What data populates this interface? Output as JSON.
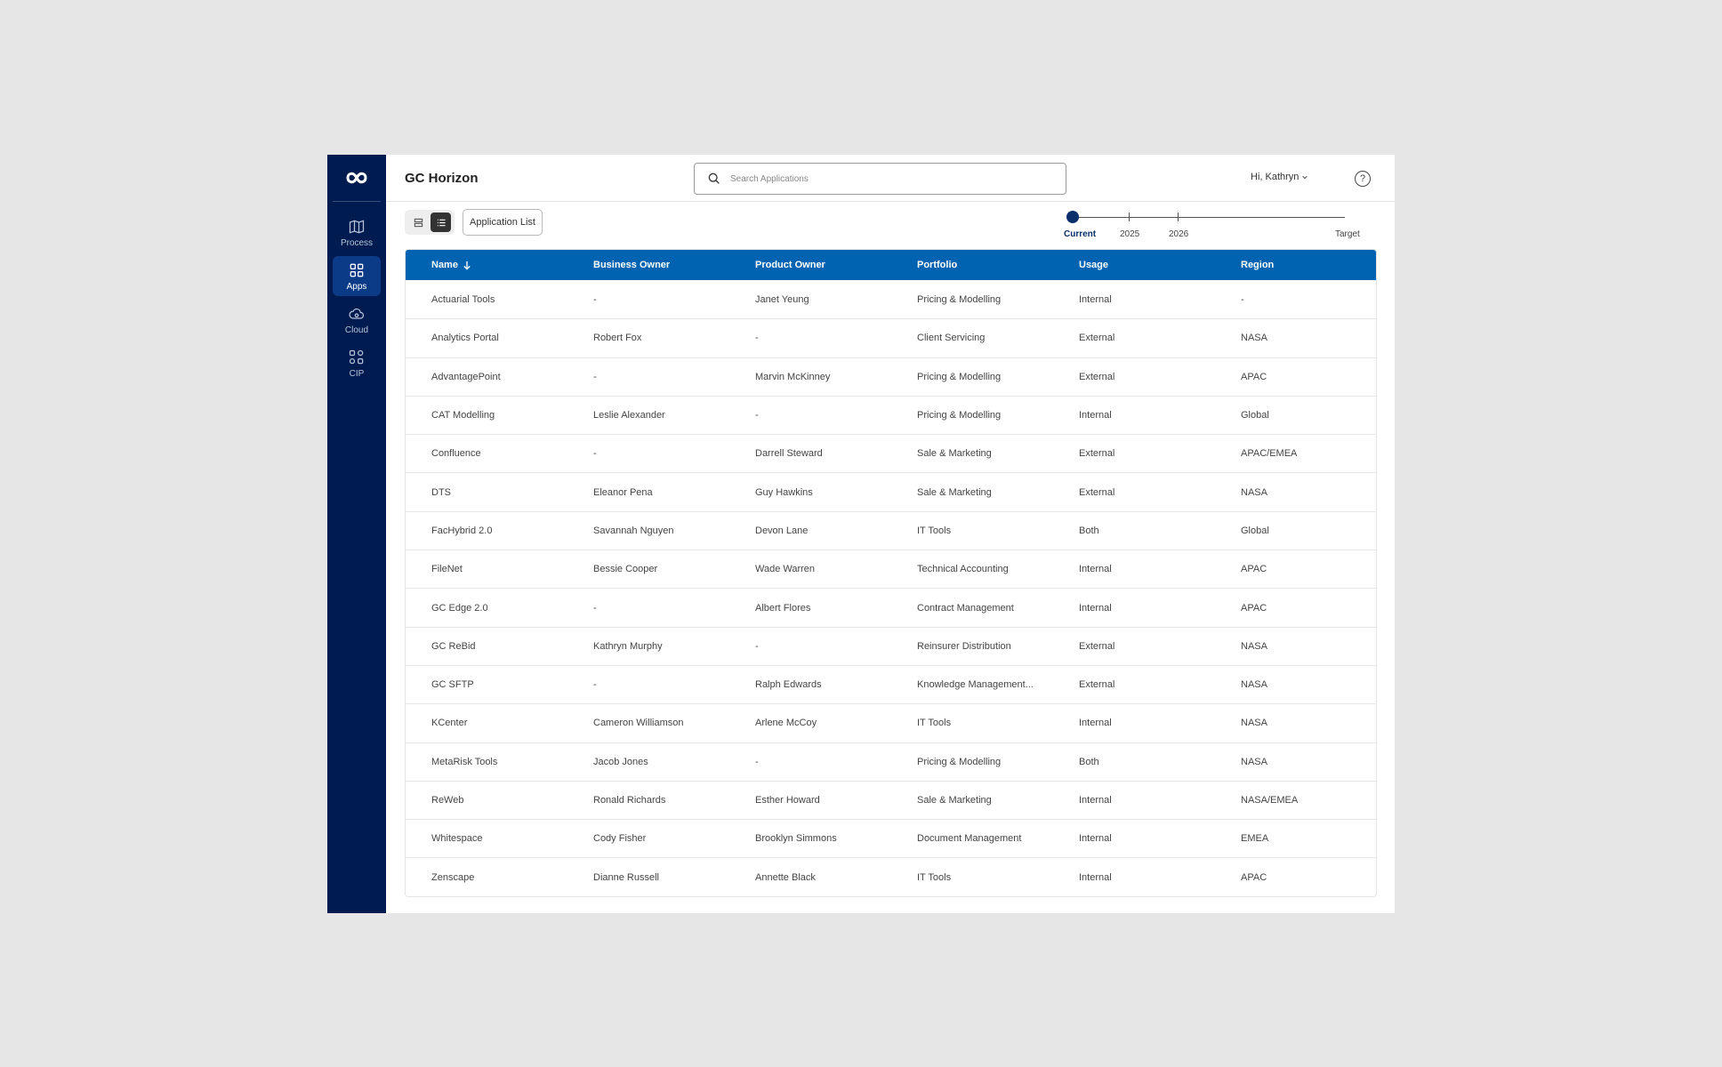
{
  "app": {
    "title": "GC Horizon"
  },
  "sidebar": {
    "items": [
      {
        "label": "Process",
        "icon": "map-icon"
      },
      {
        "label": "Apps",
        "icon": "grid-icon",
        "active": true
      },
      {
        "label": "Cloud",
        "icon": "cloud-icon"
      },
      {
        "label": "CIP",
        "icon": "cip-icon"
      }
    ]
  },
  "search": {
    "placeholder": "Search Applications",
    "value": ""
  },
  "user": {
    "greeting": "Hi, Kathryn"
  },
  "toolbar": {
    "view_label": "Application List"
  },
  "timeline": {
    "labels": [
      "Current",
      "2025",
      "2026",
      "Target"
    ],
    "selected": "Current"
  },
  "table": {
    "columns": [
      "Name",
      "Business Owner",
      "Product Owner",
      "Portfolio",
      "Usage",
      "Region"
    ],
    "sort": {
      "column": "Name",
      "direction": "descending-arrow"
    },
    "rows": [
      [
        "Actuarial Tools",
        "-",
        "Janet Yeung",
        "Pricing & Modelling",
        "Internal",
        "-"
      ],
      [
        "Analytics Portal",
        "Robert Fox",
        "-",
        "Client Servicing",
        "External",
        "NASA"
      ],
      [
        "AdvantagePoint",
        "-",
        "Marvin McKinney",
        "Pricing & Modelling",
        "External",
        "APAC"
      ],
      [
        "CAT Modelling",
        "Leslie Alexander",
        "-",
        "Pricing & Modelling",
        "Internal",
        "Global"
      ],
      [
        "Confluence",
        "-",
        "Darrell Steward",
        "Sale & Marketing",
        "External",
        "APAC/EMEA"
      ],
      [
        "DTS",
        "Eleanor Pena",
        "Guy Hawkins",
        "Sale & Marketing",
        "External",
        "NASA"
      ],
      [
        "FacHybrid 2.0",
        "Savannah Nguyen",
        "Devon Lane",
        "IT Tools",
        "Both",
        "Global"
      ],
      [
        "FileNet",
        "Bessie Cooper",
        "Wade Warren",
        "Technical Accounting",
        "Internal",
        "APAC"
      ],
      [
        "GC Edge 2.0",
        "-",
        "Albert Flores",
        "Contract Management",
        "Internal",
        "APAC"
      ],
      [
        "GC ReBid",
        "Kathryn Murphy",
        "-",
        "Reinsurer Distribution",
        "External",
        "NASA"
      ],
      [
        "GC SFTP",
        "-",
        "Ralph Edwards",
        "Knowledge Management...",
        "External",
        "NASA"
      ],
      [
        "KCenter",
        "Cameron Williamson",
        "Arlene McCoy",
        "IT Tools",
        "Internal",
        "NASA"
      ],
      [
        "MetaRisk Tools",
        "Jacob Jones",
        "-",
        "Pricing & Modelling",
        "Both",
        "NASA"
      ],
      [
        "ReWeb",
        "Ronald Richards",
        "Esther Howard",
        "Sale & Marketing",
        "Internal",
        "NASA/EMEA"
      ],
      [
        "Whitespace",
        "Cody Fisher",
        "Brooklyn Simmons",
        "Document Management",
        "Internal",
        "EMEA"
      ],
      [
        "Zenscape",
        "Dianne Russell",
        "Annette Black",
        "IT Tools",
        "Internal",
        "APAC"
      ]
    ]
  },
  "colors": {
    "sidebar_bg": "#001b4f",
    "sidebar_active": "#0b3a86",
    "table_header": "#0063b1",
    "timeline_dot": "#0b2f6b"
  }
}
